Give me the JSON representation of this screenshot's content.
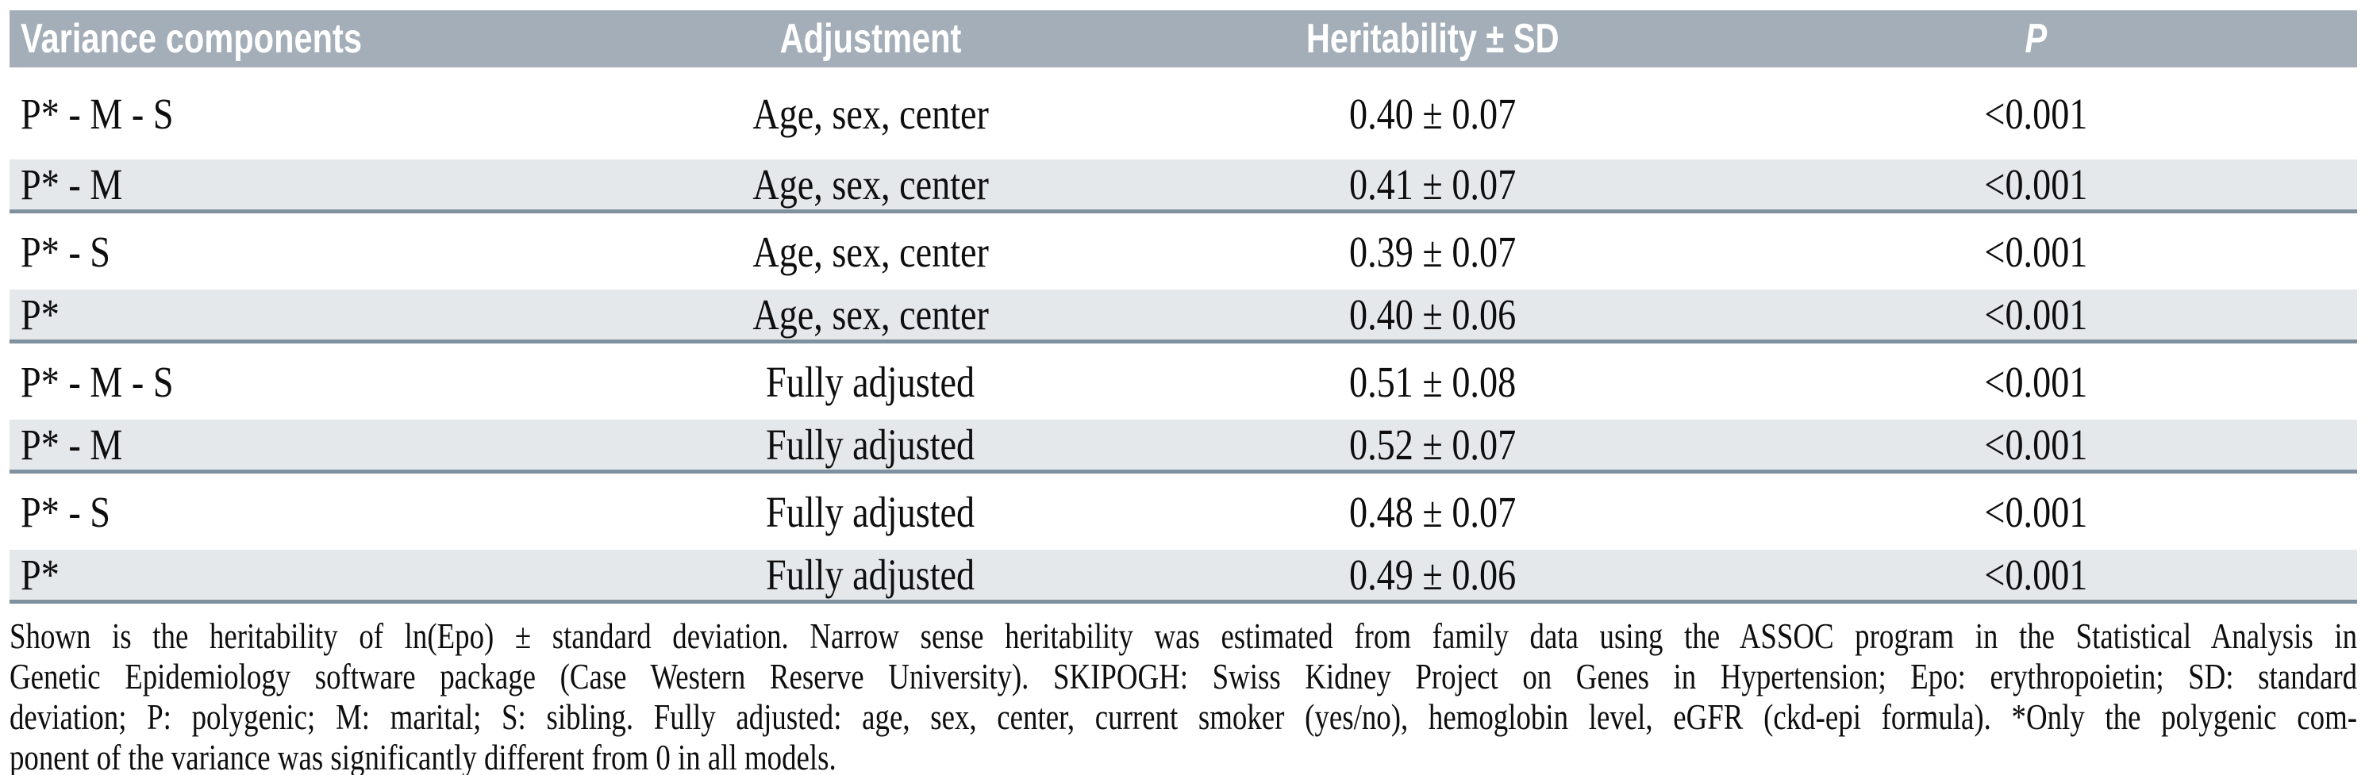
{
  "colors": {
    "header_bg": "#a3aeb8",
    "alt_row_bg": "#e5e8ea",
    "group_rule": "#7f919f",
    "header_text": "#ffffff",
    "body_text": "#0e0e0e"
  },
  "table": {
    "columns": [
      "Variance components",
      "Adjustment",
      "Heritability ± SD",
      "P"
    ],
    "rows": [
      {
        "component": "P* - M - S",
        "adjustment": "Age, sex, center",
        "heritability": "0.40 ± 0.07",
        "p": "<0.001"
      },
      {
        "component": "P* - M",
        "adjustment": "Age, sex, center",
        "heritability": "0.41 ± 0.07",
        "p": "<0.001"
      },
      {
        "component": "P* - S",
        "adjustment": "Age, sex, center",
        "heritability": "0.39 ± 0.07",
        "p": "<0.001"
      },
      {
        "component": "P*",
        "adjustment": "Age, sex, center",
        "heritability": "0.40 ± 0.06",
        "p": "<0.001"
      },
      {
        "component": "P* - M - S",
        "adjustment": "Fully adjusted",
        "heritability": "0.51 ± 0.08",
        "p": "<0.001"
      },
      {
        "component": "P* - M",
        "adjustment": "Fully adjusted",
        "heritability": "0.52 ± 0.07",
        "p": "<0.001"
      },
      {
        "component": "P* - S",
        "adjustment": "Fully adjusted",
        "heritability": "0.48 ± 0.07",
        "p": "<0.001"
      },
      {
        "component": "P*",
        "adjustment": "Fully adjusted",
        "heritability": "0.49 ± 0.06",
        "p": "<0.001"
      }
    ]
  },
  "footnote": {
    "lines": [
      "Shown is the heritability of ln(Epo) ± standard deviation. Narrow sense heritability was estimated from family data using the ASSOC program in the Statistical Analysis in",
      "Genetic Epidemiology software package (Case Western Reserve University). SKIPOGH: Swiss Kidney Project on Genes in Hypertension; Epo: erythropoietin; SD: standard",
      "deviation; P: polygenic; M: marital; S: sibling. Fully adjusted: age, sex, center, current smoker (yes/no), hemoglobin level, eGFR (ckd-epi formula). *Only the polygenic com-",
      "ponent of the variance was significantly different from 0 in all models."
    ]
  }
}
